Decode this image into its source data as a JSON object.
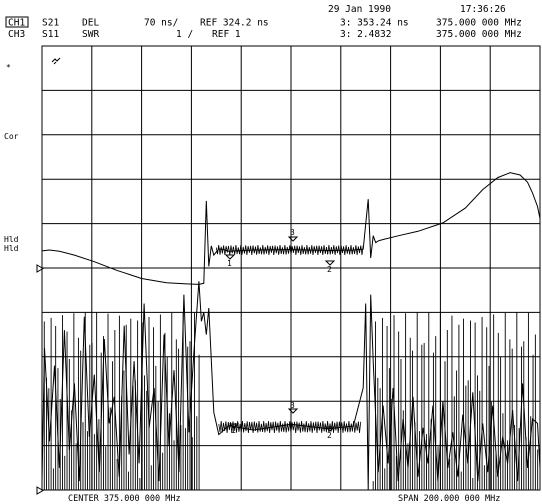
{
  "header": {
    "date": "29 Jan 1990",
    "time": "17:36:26",
    "ch1": {
      "label": "CH1",
      "param": "S21",
      "format": "DEL",
      "scale": "70 ns/",
      "ref": "REF 324.2 ns"
    },
    "ch3": {
      "label": "CH3",
      "param": "S11",
      "format": "SWR",
      "scale": "1  /",
      "ref": "REF 1"
    },
    "marker_ch1": {
      "value": "3: 353.24 ns",
      "freq": "375.000 000 MHz"
    },
    "marker_ch3": {
      "value": "3: 2.4832",
      "freq": "375.000 000 MHz"
    }
  },
  "side": {
    "star": "*",
    "cor": "Cor",
    "hld1": "Hld",
    "hld2": "Hld"
  },
  "footer": {
    "center": "CENTER 375.000 000 MHz",
    "span": "SPAN 200.000 000 MHz"
  },
  "markers": [
    {
      "label": "1",
      "channel": "ch1"
    },
    {
      "label": "2",
      "channel": "ch1"
    },
    {
      "label": "3",
      "channel": "ch1"
    },
    {
      "label": "1",
      "channel": "ch3"
    },
    {
      "label": "2",
      "channel": "ch3"
    },
    {
      "label": "3",
      "channel": "ch3"
    }
  ],
  "colors": {
    "trace": "#000000",
    "grid": "#000000",
    "background": "#ffffff"
  },
  "chart_data": [
    {
      "type": "line",
      "title": "",
      "xlabel": "",
      "ylabel": "",
      "x_range_mhz": [
        275,
        475
      ],
      "grid": true,
      "series": [
        {
          "name": "S21 DEL",
          "x_mhz": [
            275,
            278,
            282,
            288,
            296,
            305,
            315,
            325,
            333,
            338,
            340,
            341,
            342,
            343,
            344,
            346,
            348,
            350,
            360,
            375,
            390,
            400,
            404,
            406,
            407,
            408,
            409,
            410,
            412,
            418,
            426,
            436,
            445,
            452,
            458,
            463,
            467,
            470,
            472,
            474,
            475
          ],
          "y_ns": [
            351.2,
            352.6,
            350.5,
            344.6,
            334.1,
            320.5,
            307.6,
            301.1,
            299.2,
            298.3,
            300,
            430,
            326.9,
            359.1,
            344.6,
            354.3,
            353.2,
            350.5,
            352.6,
            353.2,
            351.8,
            352.6,
            353.8,
            432.7,
            340,
            375.2,
            364.2,
            366.9,
            369.1,
            374.9,
            382,
            395.3,
            418.7,
            447.8,
            466.7,
            474.5,
            470.9,
            459.5,
            442.6,
            421.1,
            402.3
          ]
        },
        {
          "name": "S11 SWR",
          "x_mhz": [
            275,
            276,
            278,
            280,
            282,
            284,
            286,
            288,
            290,
            292,
            294,
            296,
            298,
            300,
            302,
            304,
            306,
            308,
            310,
            312,
            314,
            316,
            318,
            320,
            322,
            324,
            326,
            328,
            330,
            332,
            334,
            336,
            338,
            339,
            340,
            341,
            342,
            344,
            346,
            350,
            360,
            375,
            390,
            400,
            404,
            405,
            406,
            407,
            408,
            410,
            412,
            414,
            416,
            418,
            420,
            422,
            424,
            426,
            428,
            430,
            432,
            434,
            436,
            438,
            440,
            442,
            444,
            446,
            448,
            450,
            452,
            454,
            456,
            458,
            460,
            462,
            464,
            466,
            468,
            470,
            472,
            474,
            475
          ],
          "y_swr": [
            1.2,
            4.2,
            2.1,
            3.8,
            1.5,
            4.6,
            1.9,
            3.4,
            1.2,
            4.9,
            2.2,
            3.6,
            1.4,
            4.4,
            2.5,
            3.1,
            1.3,
            4.7,
            1.8,
            3.9,
            1.6,
            5.2,
            2.4,
            3.3,
            1.2,
            4.5,
            2.0,
            3.7,
            1.4,
            5.4,
            2.3,
            4.1,
            5.7,
            4.8,
            5.0,
            4.5,
            5.1,
            2.75,
            2.25,
            2.45,
            2.35,
            2.48,
            2.38,
            2.44,
            3.3,
            5.2,
            1.0,
            5.4,
            3.9,
            1.4,
            2.9,
            1.6,
            3.3,
            1.2,
            2.6,
            1.5,
            3.1,
            1.3,
            2.4,
            1.6,
            2.9,
            1.2,
            3.0,
            1.5,
            2.3,
            1.3,
            2.7,
            1.6,
            3.2,
            1.2,
            2.5,
            1.4,
            2.9,
            1.3,
            2.2,
            1.6,
            2.8,
            1.2,
            3.4,
            1.5,
            2.6,
            2.5,
            1.5
          ]
        }
      ]
    }
  ]
}
